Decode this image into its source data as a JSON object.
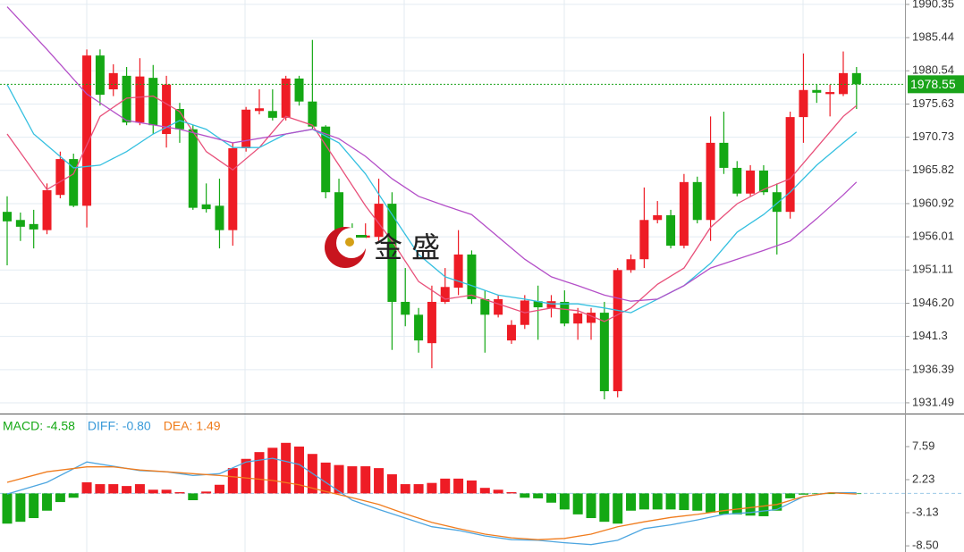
{
  "chart_data": [
    {
      "type": "candlestick",
      "xlim": [
        -0.54,
        67.65
      ],
      "ylim": [
        1929.9,
        1991.0
      ],
      "yticks": [
        1990.35,
        1985.44,
        1980.54,
        1975.63,
        1970.73,
        1965.82,
        1960.92,
        1956.01,
        1951.11,
        {
          "value": 1946.2,
          "label": "1946.20"
        },
        1941.3,
        1936.39,
        1931.49
      ],
      "grid": true,
      "up_color": "#ee1c25",
      "down_color": "#14a814",
      "candles": {
        "open": [
          1959.7,
          1958.5,
          1957.9,
          1957.0,
          1962.2,
          1967.5,
          1960.6,
          1982.8,
          1977.8,
          1979.8,
          1972.9,
          1979.5,
          1971.2,
          1974.9,
          1971.9,
          1960.8,
          1960.6,
          1957.0,
          1969.1,
          1974.6,
          1974.6,
          1973.6,
          1979.4,
          1976.0,
          1972.3,
          1962.6,
          1957.0,
          1955.9,
          1956.0,
          1960.9,
          1946.4,
          1944.5,
          1940.3,
          1946.4,
          1948.5,
          1953.4,
          1946.8,
          1944.5,
          1940.7,
          1943.0,
          1946.5,
          1945.5,
          1946.4,
          1943.2,
          1943.3,
          1944.8,
          1933.2,
          1951.1,
          1952.7,
          1958.5,
          1959.2,
          1954.7,
          1964.1,
          1958.5,
          1969.9,
          1966.2,
          1962.4,
          1965.8,
          1962.6,
          1959.7,
          1973.7,
          1977.7,
          1977.1,
          1977.1,
          1980.2
        ],
        "high": [
          1962.0,
          1959.6,
          1960.0,
          1963.9,
          1968.6,
          1968.3,
          1983.7,
          1983.7,
          1981.5,
          1981.1,
          1982.4,
          1981.4,
          1979.8,
          1975.8,
          1972.5,
          1963.9,
          1964.6,
          1969.9,
          1975.2,
          1977.8,
          1977.8,
          1979.8,
          1979.8,
          1985.1,
          1972.5,
          1964.6,
          1958.0,
          1958.0,
          1964.6,
          1962.6,
          1951.4,
          1945.5,
          1948.8,
          1951.4,
          1957.0,
          1954.0,
          1948.1,
          1947.4,
          1943.7,
          1947.4,
          1948.8,
          1947.4,
          1948.1,
          1945.5,
          1945.5,
          1946.4,
          1951.4,
          1953.4,
          1963.3,
          1961.3,
          1960.0,
          1965.3,
          1964.9,
          1973.8,
          1974.5,
          1967.2,
          1966.6,
          1966.6,
          1963.9,
          1974.5,
          1983.1,
          1978.5,
          1978.5,
          1983.4,
          1981.1
        ],
        "low": [
          1951.8,
          1955.4,
          1954.3,
          1956.4,
          1961.7,
          1960.4,
          1957.4,
          1975.4,
          1976.8,
          1972.5,
          1972.5,
          1971.2,
          1969.2,
          1969.9,
          1960.0,
          1959.6,
          1954.3,
          1954.7,
          1968.6,
          1974.1,
          1973.2,
          1973.2,
          1975.4,
          1971.9,
          1961.7,
          1955.4,
          1954.0,
          1954.7,
          1955.4,
          1939.3,
          1942.8,
          1938.9,
          1936.6,
          1946.1,
          1947.4,
          1946.1,
          1938.9,
          1944.1,
          1940.2,
          1942.4,
          1940.8,
          1944.1,
          1942.8,
          1940.8,
          1940.8,
          1932.0,
          1932.3,
          1950.7,
          1951.4,
          1958.0,
          1954.3,
          1954.3,
          1958.0,
          1955.4,
          1965.3,
          1962.0,
          1962.0,
          1962.2,
          1953.4,
          1958.7,
          1969.9,
          1975.8,
          1973.8,
          1976.8,
          1974.9
        ],
        "close": [
          1958.3,
          1957.5,
          1957.1,
          1962.9,
          1967.5,
          1960.6,
          1982.8,
          1977.0,
          1980.2,
          1972.9,
          1979.7,
          1972.5,
          1978.5,
          1971.9,
          1960.3,
          1960.1,
          1957.0,
          1969.1,
          1974.8,
          1975.0,
          1973.6,
          1979.4,
          1976.0,
          1972.3,
          1962.6,
          1956.0,
          1956.0,
          1956.2,
          1960.9,
          1946.4,
          1944.5,
          1940.7,
          1946.4,
          1948.6,
          1953.4,
          1946.8,
          1944.5,
          1946.8,
          1943.0,
          1946.6,
          1945.6,
          1946.5,
          1943.2,
          1944.7,
          1944.8,
          1933.2,
          1951.1,
          1952.7,
          1958.5,
          1959.2,
          1954.7,
          1964.1,
          1958.5,
          1969.9,
          1966.2,
          1962.4,
          1965.8,
          1962.6,
          1959.7,
          1973.7,
          1977.7,
          1977.3,
          1977.4,
          1980.2,
          1978.55
        ]
      },
      "series": [
        {
          "color": "#e8507a",
          "x": [
            0,
            3,
            5,
            7,
            9,
            11,
            13,
            15,
            17,
            19,
            21,
            23,
            25,
            27,
            29,
            31,
            33,
            35,
            37,
            39,
            41,
            43,
            45,
            47,
            49,
            51,
            53,
            55,
            57,
            59,
            61,
            63,
            64
          ],
          "values": [
            1971.2,
            1963.0,
            1965.3,
            1973.8,
            1976.5,
            1976.8,
            1974.5,
            1968.6,
            1965.9,
            1969.2,
            1973.8,
            1972.5,
            1966.6,
            1960.6,
            1955.4,
            1949.4,
            1946.8,
            1947.4,
            1946.1,
            1944.8,
            1945.5,
            1945.1,
            1943.5,
            1945.5,
            1949.0,
            1951.4,
            1957.4,
            1960.9,
            1963.0,
            1964.6,
            1969.2,
            1973.8,
            1975.4
          ]
        },
        {
          "color": "#35c0e0",
          "x": [
            0,
            2,
            5,
            7,
            9,
            11,
            13,
            15,
            17,
            19,
            21,
            23,
            25,
            27,
            29,
            31,
            33,
            35,
            37,
            39,
            41,
            43,
            45,
            47,
            49,
            51,
            53,
            55,
            57,
            59,
            61,
            63,
            64
          ],
          "values": [
            1978.5,
            1971.2,
            1966.2,
            1966.6,
            1968.6,
            1971.2,
            1973.2,
            1971.9,
            1969.2,
            1969.2,
            1971.2,
            1971.9,
            1969.9,
            1965.3,
            1959.3,
            1953.4,
            1950.1,
            1948.8,
            1947.4,
            1946.8,
            1946.1,
            1946.1,
            1945.5,
            1944.8,
            1946.8,
            1948.8,
            1952.1,
            1956.7,
            1959.3,
            1962.6,
            1966.6,
            1969.9,
            1971.5
          ]
        },
        {
          "color": "#b44fc8",
          "x": [
            0,
            3,
            6,
            9,
            13,
            17,
            21,
            23,
            25,
            27,
            29,
            31,
            33,
            35,
            37,
            39,
            41,
            43,
            45,
            47,
            49,
            51,
            53,
            55,
            57,
            59,
            61,
            63,
            64
          ],
          "values": [
            1990.0,
            1983.7,
            1977.1,
            1973.2,
            1971.9,
            1969.9,
            1971.2,
            1971.9,
            1970.5,
            1967.9,
            1964.6,
            1962.0,
            1960.6,
            1959.3,
            1956.0,
            1952.7,
            1950.1,
            1948.8,
            1947.4,
            1946.5,
            1946.8,
            1948.8,
            1951.4,
            1952.7,
            1954.0,
            1955.4,
            1958.7,
            1962.2,
            1964.1
          ]
        }
      ],
      "last_price": 1978.55,
      "last_price_color": "#1aa31a",
      "watermark": "金 盛"
    },
    {
      "type": "macd",
      "xlim": [
        -0.54,
        67.65
      ],
      "ylim": [
        -9.5,
        12.95
      ],
      "yticks": [
        7.59,
        2.23,
        -3.13,
        {
          "value": -8.5,
          "label": "-8.50"
        }
      ],
      "up_color": "#ee1c25",
      "down_color": "#14a814",
      "legend": [
        {
          "text": "MACD: -4.58",
          "color": "#14a814"
        },
        {
          "text": "DIFF: -0.80",
          "color": "#3a9ad9"
        },
        {
          "text": "DEA: 1.49",
          "color": "#ef7b1a"
        }
      ],
      "histogram": [
        -4.9,
        -4.6,
        -4.0,
        -2.8,
        -1.4,
        -0.7,
        1.8,
        1.5,
        1.5,
        1.2,
        1.5,
        0.6,
        0.6,
        0.2,
        -1.1,
        0.3,
        1.4,
        4.1,
        5.6,
        6.7,
        7.4,
        8.2,
        7.6,
        6.4,
        5.0,
        4.6,
        4.4,
        4.4,
        4.1,
        3.1,
        1.5,
        1.5,
        1.7,
        2.4,
        2.4,
        2.1,
        0.9,
        0.6,
        0.2,
        -0.7,
        -0.8,
        -1.5,
        -2.6,
        -3.4,
        -4.0,
        -4.6,
        -4.9,
        -2.8,
        -2.6,
        -2.6,
        -2.6,
        -2.7,
        -2.8,
        -3.1,
        -3.4,
        -3.4,
        -3.6,
        -3.7,
        -2.8,
        -0.8,
        -0.2,
        -0.1,
        -0.1,
        0.1,
        -0.1
      ],
      "series": [
        {
          "color": "#4da6e0",
          "x": [
            0,
            3,
            6,
            8,
            10,
            12,
            14,
            16,
            18,
            20,
            22,
            24,
            26,
            28,
            30,
            32,
            34,
            36,
            38,
            40,
            42,
            44,
            46,
            48,
            50,
            52,
            54,
            56,
            58,
            60,
            62,
            64
          ],
          "values": [
            -0.1,
            1.8,
            5.1,
            4.4,
            3.7,
            3.5,
            2.9,
            3.2,
            5.1,
            5.7,
            4.7,
            1.8,
            -1.1,
            -2.6,
            -4.0,
            -5.4,
            -6.0,
            -6.9,
            -7.5,
            -7.6,
            -8.0,
            -8.3,
            -7.6,
            -5.7,
            -5.1,
            -4.3,
            -3.4,
            -3.1,
            -2.6,
            -0.5,
            0.1,
            0.1
          ]
        },
        {
          "color": "#f07c1e",
          "x": [
            0,
            3,
            6,
            8,
            10,
            12,
            14,
            16,
            18,
            20,
            22,
            24,
            26,
            28,
            30,
            32,
            34,
            36,
            38,
            40,
            42,
            44,
            46,
            48,
            50,
            52,
            54,
            56,
            58,
            60,
            62,
            64
          ],
          "values": [
            1.8,
            3.5,
            4.3,
            4.3,
            3.8,
            3.5,
            3.2,
            2.9,
            2.5,
            2.1,
            1.4,
            0.3,
            -0.7,
            -1.8,
            -3.3,
            -4.7,
            -5.7,
            -6.6,
            -7.2,
            -7.5,
            -7.3,
            -6.6,
            -5.4,
            -4.6,
            -3.9,
            -3.4,
            -2.8,
            -2.3,
            -1.8,
            -0.5,
            0.1,
            -0.1
          ]
        }
      ]
    }
  ]
}
